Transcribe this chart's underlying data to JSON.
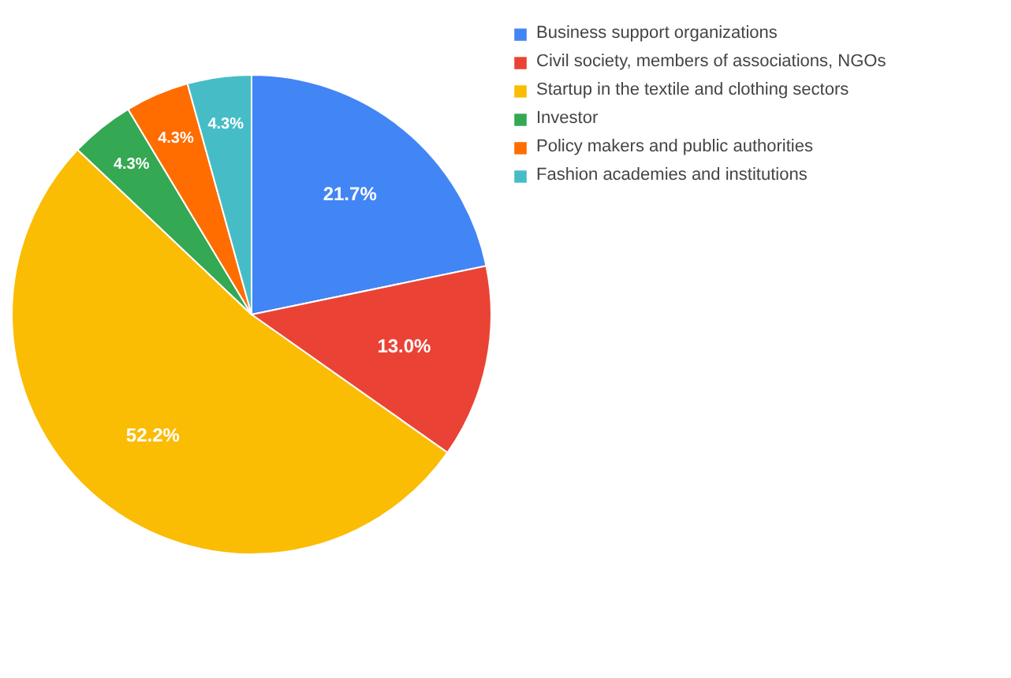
{
  "chart_data": {
    "type": "pie",
    "categories": [
      "Business support organizations",
      "Civil society, members of associations, NGOs",
      "Startup in the textile and clothing sectors",
      "Investor",
      "Policy makers and public authorities",
      "Fashion academies and institutions"
    ],
    "values": [
      21.7,
      13.0,
      52.2,
      4.3,
      4.3,
      4.3
    ],
    "value_labels": [
      "21.7%",
      "13.0%",
      "52.2%",
      "4.3%",
      "4.3%",
      "4.3%"
    ],
    "colors": [
      "#4285f4",
      "#ea4335",
      "#fbbc04",
      "#34a853",
      "#ff6d01",
      "#46bdc6"
    ],
    "legend": "right"
  }
}
